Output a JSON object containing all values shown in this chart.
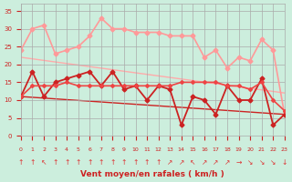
{
  "title": "",
  "xlabel": "Vent moyen/en rafales ( km/h )",
  "ylabel": "",
  "background_color": "#cceedd",
  "grid_color": "#aaaaaa",
  "xlim": [
    0,
    23
  ],
  "ylim": [
    0,
    37
  ],
  "yticks": [
    0,
    5,
    10,
    15,
    20,
    25,
    30,
    35
  ],
  "xticks": [
    0,
    1,
    2,
    3,
    4,
    5,
    6,
    7,
    8,
    9,
    10,
    11,
    12,
    13,
    14,
    15,
    16,
    17,
    18,
    19,
    20,
    21,
    22,
    23
  ],
  "series": [
    {
      "name": "rafales_upper",
      "x": [
        0,
        1,
        2,
        3,
        4,
        5,
        6,
        7,
        8,
        9,
        10,
        11,
        12,
        13,
        14,
        15,
        16,
        17,
        18,
        19,
        20,
        21,
        22,
        23
      ],
      "y": [
        24,
        30,
        31,
        23,
        24,
        25,
        28,
        33,
        30,
        30,
        29,
        29,
        29,
        28,
        28,
        28,
        22,
        24,
        19,
        22,
        21,
        27,
        24,
        6
      ],
      "color": "#ff9999",
      "lw": 1.2,
      "marker": "D",
      "ms": 2.5,
      "zorder": 2
    },
    {
      "name": "trend_upper",
      "x": [
        0,
        23
      ],
      "y": [
        22,
        12
      ],
      "color": "#ffaaaa",
      "lw": 1.0,
      "marker": null,
      "ms": 0,
      "zorder": 1
    },
    {
      "name": "rafales_lower",
      "x": [
        0,
        1,
        2,
        3,
        4,
        5,
        6,
        7,
        8,
        9,
        10,
        11,
        12,
        13,
        14,
        15,
        16,
        17,
        18,
        19,
        20,
        21,
        22,
        23
      ],
      "y": [
        11,
        18,
        11,
        15,
        16,
        17,
        18,
        14,
        18,
        13,
        14,
        10,
        14,
        13,
        3,
        11,
        10,
        6,
        14,
        10,
        10,
        16,
        3,
        6
      ],
      "color": "#cc2222",
      "lw": 1.3,
      "marker": "D",
      "ms": 2.5,
      "zorder": 3
    },
    {
      "name": "vent_moyen_flat",
      "x": [
        0,
        1,
        2,
        3,
        4,
        5,
        6,
        7,
        8,
        9,
        10,
        11,
        12,
        13,
        14,
        15,
        16,
        17,
        18,
        19,
        20,
        21,
        22,
        23
      ],
      "y": [
        11,
        14,
        14,
        14,
        15,
        14,
        14,
        14,
        14,
        14,
        14,
        14,
        14,
        14,
        15,
        15,
        15,
        15,
        14,
        14,
        13,
        15,
        10,
        7
      ],
      "color": "#ee4444",
      "lw": 1.2,
      "marker": "D",
      "ms": 2.0,
      "zorder": 3
    },
    {
      "name": "trend_lower",
      "x": [
        0,
        23
      ],
      "y": [
        11,
        6
      ],
      "color": "#cc2222",
      "lw": 1.0,
      "marker": null,
      "ms": 0,
      "zorder": 1
    }
  ],
  "wind_arrows": {
    "x": [
      0,
      1,
      2,
      3,
      4,
      5,
      6,
      7,
      8,
      9,
      10,
      11,
      12,
      13,
      14,
      15,
      16,
      17,
      18,
      19,
      20,
      21,
      22,
      23
    ],
    "symbols": [
      "↑",
      "↑",
      "↖",
      "↑",
      "↑",
      "↑",
      "↑",
      "↑",
      "↑",
      "↑",
      "↑",
      "↑",
      "↑",
      "↗",
      "↗",
      "↖",
      "↗",
      "↗",
      "↗",
      "→",
      "↘",
      "↘",
      "↘",
      "↓"
    ],
    "color": "#dd3333",
    "fontsize": 5.5
  }
}
